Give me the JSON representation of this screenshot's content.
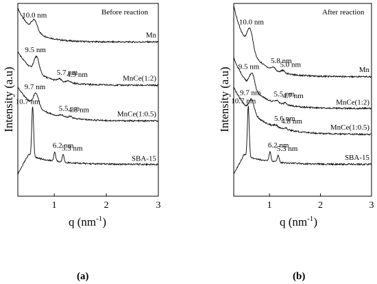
{
  "chart_data": [
    {
      "type": "line",
      "panel_title": "Before reaction",
      "caption": "(a)",
      "xlabel": "q (nm",
      "xlabel_sup": "-1",
      "xlabel_close": ")",
      "ylabel": "Intensity (a.u)",
      "xlim": [
        0.3,
        3.0
      ],
      "xticks": [
        "1",
        "2",
        "3"
      ],
      "xtick_values": [
        1,
        2,
        3
      ],
      "yticks": "none",
      "series": [
        {
          "name": "Mn",
          "baseline": 0.8,
          "peaks": [
            {
              "q": 0.62,
              "label": "10.0 nm",
              "h": 0.055,
              "w": 0.08
            }
          ],
          "start": 0.975,
          "decay": 3.4
        },
        {
          "name": "MnCe(1:2)",
          "baseline": 0.575,
          "peaks": [
            {
              "q": 0.66,
              "label": "9.5 nm",
              "h": 0.08,
              "w": 0.07
            },
            {
              "q": 1.1,
              "label": "5.7 nm",
              "h": 0.012,
              "w": 0.05
            },
            {
              "q": 1.28,
              "label": "4.9 nm",
              "h": 0.01,
              "w": 0.05
            }
          ],
          "start": 0.75,
          "decay": 2.6
        },
        {
          "name": "MnCe(1:0.5)",
          "baseline": 0.39,
          "peaks": [
            {
              "q": 0.65,
              "label": "9.7 nm",
              "h": 0.07,
              "w": 0.07
            },
            {
              "q": 1.14,
              "label": "5.5 nm",
              "h": 0.01,
              "w": 0.05
            },
            {
              "q": 1.31,
              "label": "4.8 nm",
              "h": 0.008,
              "w": 0.05
            }
          ],
          "start": 0.565,
          "decay": 2.4
        },
        {
          "name": "SBA-15",
          "baseline": 0.165,
          "peaks": [
            {
              "q": 0.585,
              "label": "10.7 nm",
              "h": 0.26,
              "w": 0.025
            },
            {
              "q": 1.01,
              "label": "6.2 nm",
              "h": 0.05,
              "w": 0.025
            },
            {
              "q": 1.17,
              "label": "5.3 nm",
              "h": 0.04,
              "w": 0.025
            }
          ],
          "start": 0.3,
          "decay": 4.0
        }
      ]
    },
    {
      "type": "line",
      "panel_title": "After reaction",
      "caption": "(b)",
      "xlabel": "q (nm",
      "xlabel_sup": "-1",
      "xlabel_close": ")",
      "ylabel": "Intensity (a.u)",
      "xlim": [
        0.3,
        3.0
      ],
      "xticks": [
        "1",
        "2",
        "3"
      ],
      "xtick_values": [
        1,
        2,
        3
      ],
      "yticks": "none",
      "series": [
        {
          "name": "Mn",
          "baseline": 0.62,
          "peaks": [
            {
              "q": 0.62,
              "label": "10.0 nm",
              "h": 0.11,
              "w": 0.08
            },
            {
              "q": 1.08,
              "label": "5.8 nm",
              "h": 0.015,
              "w": 0.05
            },
            {
              "q": 1.26,
              "label": "5.0 nm",
              "h": 0.012,
              "w": 0.05
            }
          ],
          "start": 0.985,
          "decay": 3.0
        },
        {
          "name": "MnCe(1:2)",
          "baseline": 0.455,
          "peaks": [
            {
              "q": 0.66,
              "label": "9.5 nm",
              "h": 0.08,
              "w": 0.07
            },
            {
              "q": 1.14,
              "label": "5.5 nm",
              "h": 0.012,
              "w": 0.05
            },
            {
              "q": 1.31,
              "label": "4.7 nm",
              "h": 0.01,
              "w": 0.05
            }
          ],
          "start": 0.72,
          "decay": 2.6
        },
        {
          "name": "MnCe(1:0.5)",
          "baseline": 0.32,
          "peaks": [
            {
              "q": 0.65,
              "label": "9.7 nm",
              "h": 0.07,
              "w": 0.07
            },
            {
              "q": 1.12,
              "label": "5.6 nm",
              "h": 0.01,
              "w": 0.05
            },
            {
              "q": 1.31,
              "label": "4.8 nm",
              "h": 0.008,
              "w": 0.05
            }
          ],
          "start": 0.565,
          "decay": 2.2
        },
        {
          "name": "SBA-15",
          "baseline": 0.165,
          "peaks": [
            {
              "q": 0.585,
              "label": "10.7 nm",
              "h": 0.26,
              "w": 0.025
            },
            {
              "q": 1.01,
              "label": "6.2 nm",
              "h": 0.05,
              "w": 0.025
            },
            {
              "q": 1.17,
              "label": "5.3 nm",
              "h": 0.04,
              "w": 0.025
            }
          ],
          "start": 0.3,
          "decay": 4.0
        }
      ]
    }
  ]
}
